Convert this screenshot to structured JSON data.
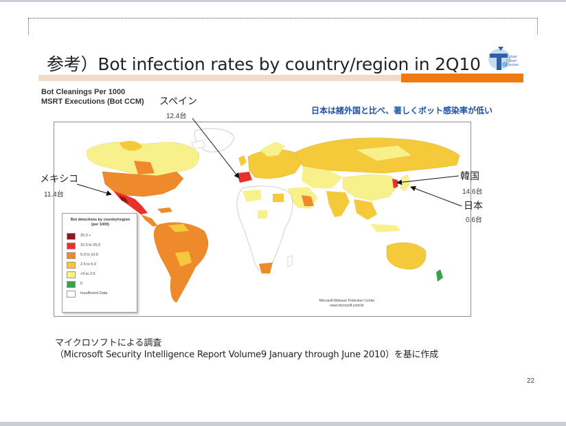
{
  "slide": {
    "title": "参考）Bot infection rates by country/region in 2Q10",
    "header_left": [
      "Bot Cleanings Per 1000",
      "MSRT Executions (Bot CCM)"
    ],
    "note": "日本は諸外国と比べ、著しくボット感染率が低い",
    "logo_text": [
      "Cyber",
      "Clean",
      "Center"
    ],
    "page_number": "22"
  },
  "callouts": [
    {
      "label": "スペイン",
      "value": "12.4台"
    },
    {
      "label": "メキシコ",
      "value": "11.4台"
    },
    {
      "label": "韓国",
      "value": "14.6台"
    },
    {
      "label": "日本",
      "value": "0.6台"
    }
  ],
  "map": {
    "legend_title": "Bot detections by country/region (per 1000)",
    "legend": [
      {
        "label": "25.0 +",
        "color": "#8b1a14"
      },
      {
        "label": "10.0 to 25.0",
        "color": "#e8312b"
      },
      {
        "label": "5.0 to 10.0",
        "color": "#ee8a2c"
      },
      {
        "label": "2.5 to 5.0",
        "color": "#f4c93a"
      },
      {
        "label": ">0 to 2.5",
        "color": "#f8f08a"
      },
      {
        "label": "0",
        "color": "#3aa04a"
      },
      {
        "label": "Insufficient Data",
        "color": "#ffffff"
      }
    ],
    "credit": [
      "Microsoft Malware Protection Center",
      "www.microsoft.com/sir"
    ]
  },
  "source": {
    "line1": "マイクロソフトによる調査",
    "line2": "（Microsoft Security Intelligence Report  Volume9  January through June 2010）を基に作成"
  },
  "colors": {
    "accent_orange": "#f07a12",
    "note_blue": "#1f4fa0",
    "title_bar_tan": "#f0dcc6"
  }
}
